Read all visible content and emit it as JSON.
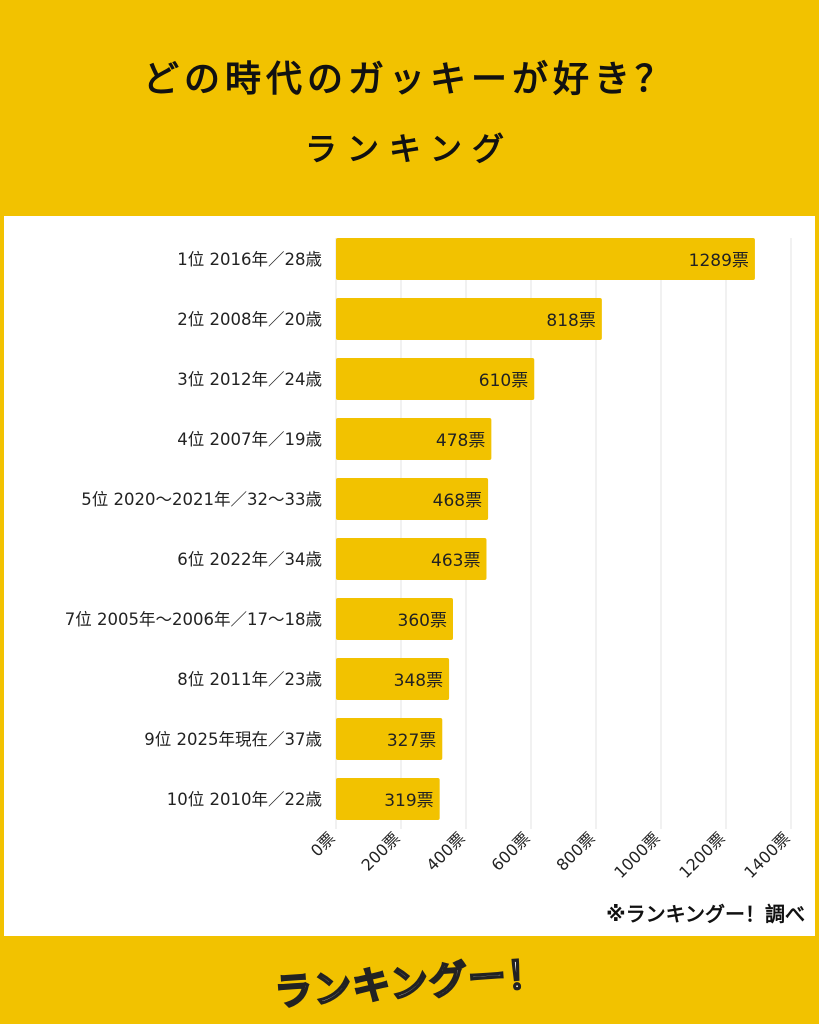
{
  "header": {
    "title_line1": "どの時代のガッキーが好き？",
    "title_line2": "ランキング"
  },
  "source": "※ランキングー！調べ",
  "logo": "ランキングー！",
  "colors": {
    "background": "#f2c200",
    "bar": "#f2c200",
    "panel": "#ffffff",
    "grid": "#e3e3e3",
    "text": "#222222"
  },
  "chart_data": {
    "type": "bar",
    "orientation": "horizontal",
    "categories": [
      "1位 2016年／28歳",
      "2位 2008年／20歳",
      "3位 2012年／24歳",
      "4位 2007年／19歳",
      "5位 2020〜2021年／32〜33歳",
      "6位 2022年／34歳",
      "7位 2005年〜2006年／17〜18歳",
      "8位 2011年／23歳",
      "9位 2025年現在／37歳",
      "10位 2010年／22歳"
    ],
    "values": [
      1289,
      818,
      610,
      478,
      468,
      463,
      360,
      348,
      327,
      319
    ],
    "value_labels": [
      "1289票",
      "818票",
      "610票",
      "478票",
      "468票",
      "463票",
      "360票",
      "348票",
      "327票",
      "319票"
    ],
    "x_ticks": [
      "0票",
      "200票",
      "400票",
      "600票",
      "800票",
      "1000票",
      "1200票",
      "1400票"
    ],
    "xlim": [
      0,
      1400
    ],
    "grid": true,
    "legend": false
  }
}
